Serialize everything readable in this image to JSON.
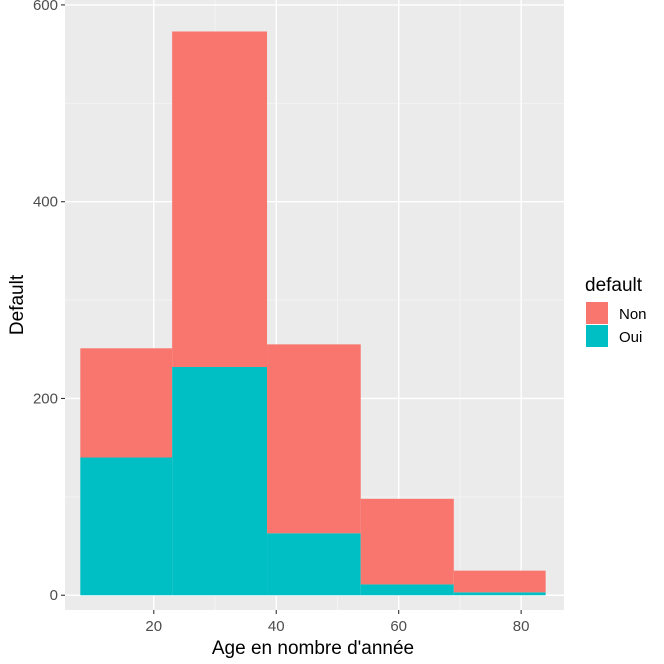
{
  "chart_data": {
    "type": "bar",
    "stacked": true,
    "histogram": true,
    "title": "",
    "xlabel": "Age en nombre d'année",
    "ylabel": "Default",
    "xlim": [
      5.5,
      87
    ],
    "ylim": [
      -15,
      605
    ],
    "xticks": [
      20,
      40,
      60,
      80
    ],
    "yticks": [
      0,
      200,
      400,
      600
    ],
    "grid": true,
    "legend": {
      "title": "default",
      "position": "right"
    },
    "bins": [
      {
        "x0": 8,
        "x1": 23
      },
      {
        "x0": 23,
        "x1": 38.5
      },
      {
        "x0": 38.5,
        "x1": 53.8
      },
      {
        "x0": 53.8,
        "x1": 69
      },
      {
        "x0": 69,
        "x1": 84
      }
    ],
    "series": [
      {
        "name": "Oui",
        "color": "#00BFC4",
        "values": [
          140,
          232,
          63,
          11,
          3
        ]
      },
      {
        "name": "Non",
        "color": "#F8766D",
        "values": [
          111,
          341,
          192,
          87,
          22
        ]
      }
    ]
  }
}
